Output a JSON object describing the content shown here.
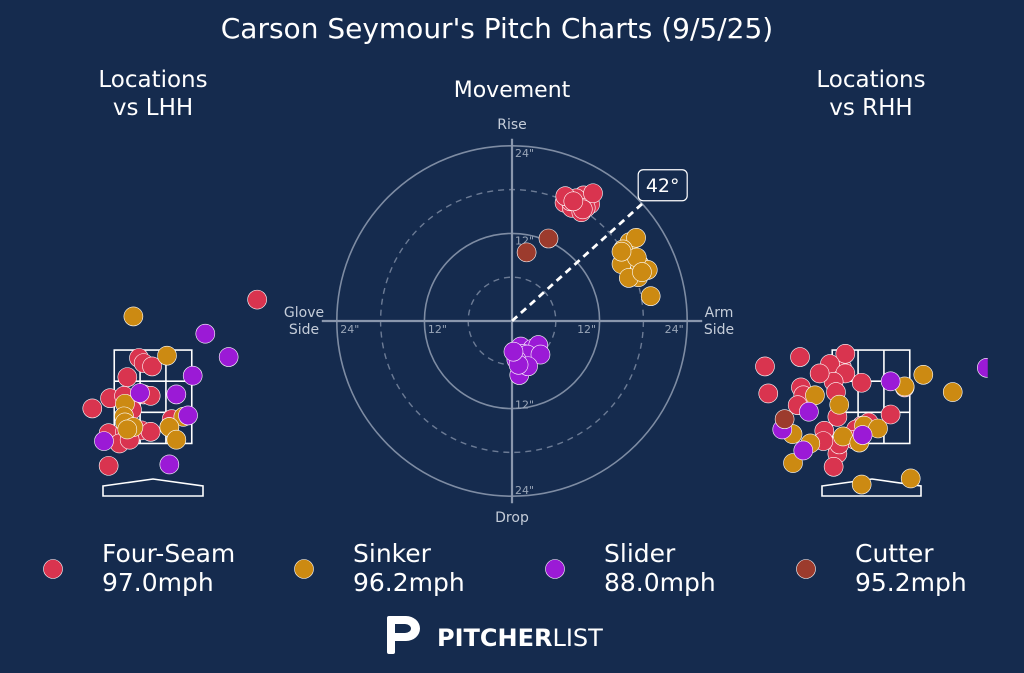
{
  "title": "Carson Seymour's Pitch Charts (9/5/25)",
  "colors": {
    "background": "#152b4e",
    "Four-Seam": "#d9344f",
    "Sinker": "#cc8a12",
    "Slider": "#9b1ad6",
    "Cutter": "#9c3b2d"
  },
  "chart_data": [
    {
      "type": "scatter",
      "title": "Locations\nvs LHH",
      "xlim": [
        -2.5,
        2.5
      ],
      "ylim": [
        0,
        5
      ],
      "strike_zone": {
        "x": [
          -0.83,
          0.83
        ],
        "y": [
          1.5,
          3.5
        ]
      },
      "series": [
        {
          "name": "Four-Seam",
          "points": [
            [
              2.23,
              4.58
            ],
            [
              -0.92,
              2.47
            ],
            [
              -0.3,
              3.33
            ],
            [
              -0.2,
              3.22
            ],
            [
              -0.55,
              2.92
            ],
            [
              -0.62,
              2.52
            ],
            [
              -0.2,
              2.55
            ],
            [
              -0.45,
              2.22
            ],
            [
              -0.05,
              2.52
            ],
            [
              -0.02,
              3.15
            ],
            [
              -1.3,
              2.25
            ],
            [
              -0.95,
              1.72
            ],
            [
              -0.6,
              1.75
            ],
            [
              -0.25,
              1.78
            ],
            [
              -0.05,
              1.75
            ],
            [
              -0.72,
              1.5
            ],
            [
              0.4,
              2.02
            ],
            [
              -0.5,
              1.58
            ],
            [
              -0.95,
              1.02
            ],
            [
              0.35,
              1.85
            ]
          ]
        },
        {
          "name": "Sinker",
          "points": [
            [
              -0.42,
              4.22
            ],
            [
              0.3,
              3.38
            ],
            [
              -0.6,
              2.35
            ],
            [
              -0.62,
              2.08
            ],
            [
              -0.6,
              1.95
            ],
            [
              -0.42,
              1.85
            ],
            [
              0.65,
              2.07
            ],
            [
              0.35,
              1.85
            ],
            [
              0.5,
              1.58
            ],
            [
              -0.55,
              1.8
            ]
          ]
        },
        {
          "name": "Slider",
          "points": [
            [
              1.12,
              3.85
            ],
            [
              1.62,
              3.35
            ],
            [
              0.85,
              2.95
            ],
            [
              0.5,
              2.55
            ],
            [
              0.75,
              2.1
            ],
            [
              -1.05,
              1.55
            ],
            [
              0.35,
              1.05
            ],
            [
              -0.28,
              2.58
            ]
          ]
        },
        {
          "name": "Cutter",
          "points": []
        }
      ]
    },
    {
      "type": "scatter",
      "title": "Movement",
      "axis_labels": {
        "top": "Rise",
        "bottom": "Drop",
        "left": "Glove\nSide",
        "right": "Arm\nSide"
      },
      "ticks": [
        "12\"",
        "24\""
      ],
      "rmax": 24,
      "arm_angle": "42°",
      "series": [
        {
          "name": "Four-Seam",
          "points": [
            [
              7.2,
              16.2
            ],
            [
              8.2,
              15.5
            ],
            [
              9.5,
              14.9
            ],
            [
              10.7,
              16.0
            ],
            [
              9.4,
              16.8
            ],
            [
              9.8,
              17.2
            ],
            [
              8.8,
              16.8
            ],
            [
              8.0,
              16.4
            ],
            [
              7.3,
              17.1
            ],
            [
              10.1,
              15.5
            ],
            [
              11.1,
              17.5
            ],
            [
              9.7,
              15.3
            ],
            [
              8.4,
              16.4
            ]
          ]
        },
        {
          "name": "Sinker",
          "points": [
            [
              16.1,
              10.8
            ],
            [
              17.0,
              11.4
            ],
            [
              15.2,
              9.8
            ],
            [
              16.3,
              8.3
            ],
            [
              17.5,
              7.7
            ],
            [
              18.6,
              7.0
            ],
            [
              17.3,
              6.0
            ],
            [
              19.0,
              3.4
            ],
            [
              15.0,
              7.8
            ],
            [
              17.1,
              8.7
            ],
            [
              16.0,
              5.9
            ],
            [
              15.0,
              9.5
            ],
            [
              17.8,
              6.7
            ]
          ]
        },
        {
          "name": "Slider",
          "points": [
            [
              1.2,
              -3.5
            ],
            [
              2.8,
              -3.8
            ],
            [
              1.5,
              -4.5
            ],
            [
              3.6,
              -3.3
            ],
            [
              2.1,
              -4.6
            ],
            [
              0.6,
              -5.3
            ],
            [
              3.9,
              -4.6
            ],
            [
              1.0,
              -7.4
            ],
            [
              2.2,
              -6.2
            ],
            [
              0.9,
              -6.0
            ],
            [
              0.2,
              -4.2
            ]
          ]
        },
        {
          "name": "Cutter",
          "points": [
            [
              2.0,
              9.4
            ],
            [
              5.0,
              11.3
            ]
          ]
        }
      ]
    },
    {
      "type": "scatter",
      "title": "Locations\nvs RHH",
      "xlim": [
        -2.5,
        2.5
      ],
      "ylim": [
        0,
        5
      ],
      "strike_zone": {
        "x": [
          -0.83,
          0.83
        ],
        "y": [
          1.5,
          3.5
        ]
      },
      "series": [
        {
          "name": "Four-Seam",
          "points": [
            [
              -1.52,
              3.35
            ],
            [
              -2.27,
              3.15
            ],
            [
              -1.5,
              2.7
            ],
            [
              -0.62,
              3.12
            ],
            [
              -0.55,
              3.42
            ],
            [
              -0.88,
              3.2
            ],
            [
              -0.55,
              3.0
            ],
            [
              -0.8,
              2.82
            ],
            [
              -0.2,
              2.8
            ],
            [
              -1.1,
              3.0
            ],
            [
              -0.75,
              2.6
            ],
            [
              -2.2,
              2.57
            ],
            [
              -1.45,
              2.53
            ],
            [
              -0.72,
              2.07
            ],
            [
              -0.2,
              1.88
            ],
            [
              -0.05,
              1.95
            ],
            [
              0.42,
              2.12
            ],
            [
              -0.32,
              1.8
            ],
            [
              -1.0,
              1.77
            ],
            [
              -0.35,
              1.58
            ],
            [
              -0.72,
              1.28
            ],
            [
              -0.8,
              1.0
            ],
            [
              -0.68,
              1.48
            ],
            [
              -1.02,
              1.55
            ],
            [
              0.72,
              2.7
            ],
            [
              -1.57,
              2.32
            ]
          ]
        },
        {
          "name": "Sinker",
          "points": [
            [
              0.72,
              2.72
            ],
            [
              1.12,
              2.97
            ],
            [
              1.75,
              2.6
            ],
            [
              -1.2,
              2.53
            ],
            [
              -0.68,
              2.33
            ],
            [
              -1.68,
              1.7
            ],
            [
              -0.15,
              1.88
            ],
            [
              -0.6,
              1.65
            ],
            [
              -0.25,
              1.52
            ],
            [
              0.15,
              1.82
            ],
            [
              -1.3,
              1.5
            ],
            [
              -1.67,
              1.08
            ],
            [
              -0.2,
              0.62
            ],
            [
              0.85,
              0.75
            ]
          ]
        },
        {
          "name": "Slider",
          "points": [
            [
              -1.33,
              2.18
            ],
            [
              -0.18,
              1.68
            ],
            [
              0.42,
              2.83
            ],
            [
              -1.45,
              1.35
            ],
            [
              -1.9,
              1.8
            ],
            [
              2.48,
              3.12
            ]
          ]
        },
        {
          "name": "Cutter",
          "points": [
            [
              -1.85,
              2.02
            ]
          ]
        }
      ]
    }
  ],
  "legend": [
    {
      "name": "Four-Seam",
      "speed": "97.0mph"
    },
    {
      "name": "Sinker",
      "speed": "96.2mph"
    },
    {
      "name": "Slider",
      "speed": "88.0mph"
    },
    {
      "name": "Cutter",
      "speed": "95.2mph"
    }
  ],
  "logo": {
    "bold": "PITCHER",
    "light": "LIST"
  }
}
